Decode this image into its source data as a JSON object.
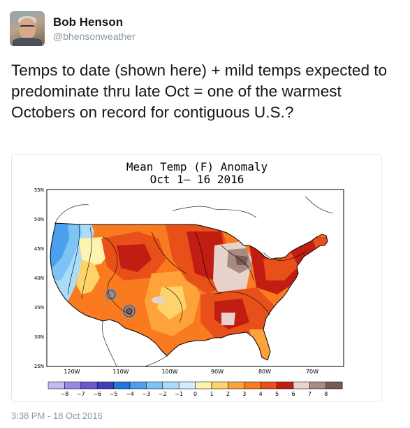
{
  "tweet": {
    "display_name": "Bob Henson",
    "handle": "@bhensonweather",
    "text": "Temps to date (shown here) + mild temps expected to predominate thru late Oct = one of the warmest Octobers on record for contiguous U.S.?",
    "timestamp": "3:38 PM - 18 Oct 2016"
  },
  "map": {
    "title_line1": "Mean Temp (F) Anomaly",
    "title_line2": "Oct 1– 16 2016",
    "lat_labels": [
      "55N",
      "50N",
      "45N",
      "40N",
      "35N",
      "30N",
      "25N"
    ],
    "lon_labels": [
      "120W",
      "110W",
      "100W",
      "90W",
      "80W",
      "70W"
    ],
    "legend_ticks": [
      "−8",
      "−7",
      "−6",
      "−5",
      "−4",
      "−3",
      "−2",
      "−1",
      "0",
      "1",
      "2",
      "3",
      "4",
      "5",
      "6",
      "7",
      "8"
    ],
    "legend_colors": [
      "#c7b8f0",
      "#9a87e6",
      "#6a5acd",
      "#3f3fb8",
      "#1f78e0",
      "#4aa0ee",
      "#7dc4f5",
      "#a9dcf7",
      "#d4eef9",
      "#fff3b0",
      "#ffd36b",
      "#fda33a",
      "#f97a1f",
      "#e8501a",
      "#c21d12",
      "#e8d2cc",
      "#a88a82",
      "#7a5a52"
    ]
  }
}
